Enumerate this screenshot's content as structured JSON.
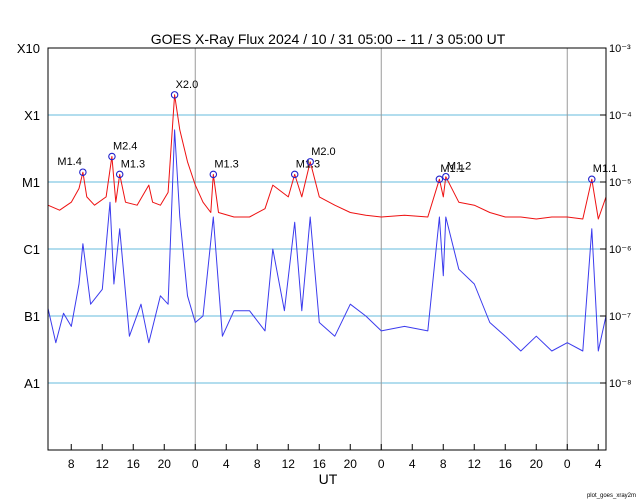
{
  "title": "GOES X-Ray Flux   2024 / 10 / 31   05:00 -- 11 /  3   05:00   UT",
  "credit": "plot_goes_xray2m",
  "colors": {
    "long_channel": "#ee1111",
    "short_channel": "#3b3bee",
    "class_grid": "#66bbdd",
    "day_boundary": "#9a9a9a",
    "flare_marker": "#2222cc"
  },
  "chart_data": {
    "type": "line",
    "title": "GOES X-Ray Flux   2024 / 10 / 31   05:00 -- 11 /  3   05:00   UT",
    "xlabel": "UT",
    "x_start": "2024-10-31 05:00",
    "x_end": "2024-11-03 05:00",
    "y_scale": "log",
    "ylim": [
      1e-09,
      0.001
    ],
    "grid": true,
    "x_ticks": [
      {
        "t": "2024-10-31 08:00",
        "label": "8"
      },
      {
        "t": "2024-10-31 12:00",
        "label": "12"
      },
      {
        "t": "2024-10-31 16:00",
        "label": "16"
      },
      {
        "t": "2024-10-31 20:00",
        "label": "20"
      },
      {
        "t": "2024-11-01 00:00",
        "label": "0"
      },
      {
        "t": "2024-11-01 04:00",
        "label": "4"
      },
      {
        "t": "2024-11-01 08:00",
        "label": "8"
      },
      {
        "t": "2024-11-01 12:00",
        "label": "12"
      },
      {
        "t": "2024-11-01 16:00",
        "label": "16"
      },
      {
        "t": "2024-11-01 20:00",
        "label": "20"
      },
      {
        "t": "2024-11-02 00:00",
        "label": "0"
      },
      {
        "t": "2024-11-02 04:00",
        "label": "4"
      },
      {
        "t": "2024-11-02 08:00",
        "label": "8"
      },
      {
        "t": "2024-11-02 12:00",
        "label": "12"
      },
      {
        "t": "2024-11-02 16:00",
        "label": "16"
      },
      {
        "t": "2024-11-02 20:00",
        "label": "20"
      },
      {
        "t": "2024-11-03 00:00",
        "label": "0"
      },
      {
        "t": "2024-11-03 04:00",
        "label": "4"
      }
    ],
    "day_boundaries": [
      "2024-11-01 00:00",
      "2024-11-02 00:00",
      "2024-11-03 00:00"
    ],
    "class_levels": [
      {
        "label": "X10",
        "flux": 0.001
      },
      {
        "label": "X1",
        "flux": 0.0001
      },
      {
        "label": "M1",
        "flux": 1e-05
      },
      {
        "label": "C1",
        "flux": 1e-06
      },
      {
        "label": "B1",
        "flux": 1e-07
      },
      {
        "label": "A1",
        "flux": 1e-08
      }
    ],
    "flux_ticks": [
      {
        "flux": 0.001,
        "label": "10⁻³"
      },
      {
        "flux": 0.0001,
        "label": "10⁻⁴"
      },
      {
        "flux": 1e-05,
        "label": "10⁻⁵"
      },
      {
        "flux": 1e-06,
        "label": "10⁻⁶"
      },
      {
        "flux": 1e-07,
        "label": "10⁻⁷"
      },
      {
        "flux": 1e-08,
        "label": "10⁻⁸"
      }
    ],
    "flares": [
      {
        "t": "2024-10-31 09:30",
        "flux": 1.4e-05,
        "label": "M1.4",
        "label_pos": "left"
      },
      {
        "t": "2024-10-31 13:15",
        "flux": 2.4e-05,
        "label": "M2.4",
        "label_pos": "right"
      },
      {
        "t": "2024-10-31 14:15",
        "flux": 1.3e-05,
        "label": "M1.3",
        "label_pos": "right"
      },
      {
        "t": "2024-10-31 21:20",
        "flux": 0.0002,
        "label": "X2.0",
        "label_pos": "right"
      },
      {
        "t": "2024-11-01 02:20",
        "flux": 1.3e-05,
        "label": "M1.3",
        "label_pos": "right"
      },
      {
        "t": "2024-11-01 12:50",
        "flux": 1.3e-05,
        "label": "M1.3",
        "label_pos": "right"
      },
      {
        "t": "2024-11-01 14:50",
        "flux": 2e-05,
        "label": "M2.0",
        "label_pos": "right"
      },
      {
        "t": "2024-11-02 07:30",
        "flux": 1.1e-05,
        "label": "M1.1",
        "label_pos": "right"
      },
      {
        "t": "2024-11-02 08:20",
        "flux": 1.2e-05,
        "label": "M1.2",
        "label_pos": "right"
      },
      {
        "t": "2024-11-03 03:10",
        "flux": 1.1e-05,
        "label": "M1.1",
        "label_pos": "right"
      }
    ],
    "series": [
      {
        "channel": "long",
        "x": [
          "2024-10-31 05:00",
          "2024-10-31 06:30",
          "2024-10-31 08:00",
          "2024-10-31 09:00",
          "2024-10-31 09:30",
          "2024-10-31 10:00",
          "2024-10-31 11:00",
          "2024-10-31 12:30",
          "2024-10-31 13:15",
          "2024-10-31 13:45",
          "2024-10-31 14:15",
          "2024-10-31 15:00",
          "2024-10-31 16:30",
          "2024-10-31 18:00",
          "2024-10-31 18:30",
          "2024-10-31 19:30",
          "2024-10-31 20:30",
          "2024-10-31 21:20",
          "2024-10-31 22:00",
          "2024-10-31 23:00",
          "2024-11-01 00:00",
          "2024-11-01 01:00",
          "2024-11-01 02:00",
          "2024-11-01 02:20",
          "2024-11-01 03:00",
          "2024-11-01 05:00",
          "2024-11-01 07:00",
          "2024-11-01 09:00",
          "2024-11-01 10:00",
          "2024-11-01 12:00",
          "2024-11-01 12:50",
          "2024-11-01 13:45",
          "2024-11-01 14:50",
          "2024-11-01 16:00",
          "2024-11-01 18:00",
          "2024-11-01 20:00",
          "2024-11-01 22:00",
          "2024-11-02 00:00",
          "2024-11-02 03:00",
          "2024-11-02 06:00",
          "2024-11-02 07:30",
          "2024-11-02 08:00",
          "2024-11-02 08:20",
          "2024-11-02 10:00",
          "2024-11-02 12:00",
          "2024-11-02 14:00",
          "2024-11-02 16:00",
          "2024-11-02 18:00",
          "2024-11-02 20:00",
          "2024-11-02 22:00",
          "2024-11-03 00:00",
          "2024-11-03 02:00",
          "2024-11-03 03:10",
          "2024-11-03 04:00",
          "2024-11-03 05:00"
        ],
        "y": [
          4.5e-06,
          3.8e-06,
          5e-06,
          8e-06,
          1.4e-05,
          6e-06,
          4.5e-06,
          6e-06,
          2.4e-05,
          5e-06,
          1.3e-05,
          5e-06,
          4.5e-06,
          9e-06,
          5e-06,
          4.5e-06,
          7e-06,
          0.0002,
          6e-05,
          2e-05,
          9e-06,
          5e-06,
          3.5e-06,
          1.3e-05,
          3.5e-06,
          3e-06,
          3e-06,
          4e-06,
          9e-06,
          6e-06,
          1.3e-05,
          6e-06,
          2e-05,
          6e-06,
          4.5e-06,
          3.5e-06,
          3.2e-06,
          3e-06,
          3.2e-06,
          3e-06,
          1.1e-05,
          6e-06,
          1.2e-05,
          5e-06,
          4.5e-06,
          3.5e-06,
          3e-06,
          3e-06,
          2.8e-06,
          3e-06,
          3e-06,
          2.8e-06,
          1.1e-05,
          2.8e-06,
          6e-06
        ]
      },
      {
        "channel": "short",
        "x": [
          "2024-10-31 05:00",
          "2024-10-31 06:00",
          "2024-10-31 07:00",
          "2024-10-31 08:00",
          "2024-10-31 09:00",
          "2024-10-31 09:30",
          "2024-10-31 10:30",
          "2024-10-31 12:00",
          "2024-10-31 13:00",
          "2024-10-31 13:30",
          "2024-10-31 14:15",
          "2024-10-31 15:30",
          "2024-10-31 17:00",
          "2024-10-31 18:00",
          "2024-10-31 19:30",
          "2024-10-31 20:30",
          "2024-10-31 21:20",
          "2024-10-31 22:00",
          "2024-10-31 23:00",
          "2024-11-01 00:00",
          "2024-11-01 01:00",
          "2024-11-01 02:20",
          "2024-11-01 03:30",
          "2024-11-01 05:00",
          "2024-11-01 07:00",
          "2024-11-01 09:00",
          "2024-11-01 10:00",
          "2024-11-01 11:30",
          "2024-11-01 12:50",
          "2024-11-01 13:45",
          "2024-11-01 14:50",
          "2024-11-01 16:00",
          "2024-11-01 18:00",
          "2024-11-01 20:00",
          "2024-11-01 22:00",
          "2024-11-02 00:00",
          "2024-11-02 03:00",
          "2024-11-02 06:00",
          "2024-11-02 07:30",
          "2024-11-02 08:00",
          "2024-11-02 08:20",
          "2024-11-02 10:00",
          "2024-11-02 12:00",
          "2024-11-02 14:00",
          "2024-11-02 16:00",
          "2024-11-02 18:00",
          "2024-11-02 20:00",
          "2024-11-02 22:00",
          "2024-11-03 00:00",
          "2024-11-03 02:00",
          "2024-11-03 03:10",
          "2024-11-03 04:00",
          "2024-11-03 05:00"
        ],
        "y": [
          1.3e-07,
          4e-08,
          1.1e-07,
          7e-08,
          3e-07,
          1.2e-06,
          1.5e-07,
          2.5e-07,
          5e-06,
          3e-07,
          2e-06,
          5e-08,
          1.5e-07,
          4e-08,
          2e-07,
          1.5e-07,
          6e-05,
          3e-06,
          2e-07,
          8e-08,
          1e-07,
          3e-06,
          5e-08,
          1.2e-07,
          1.2e-07,
          6e-08,
          1e-06,
          1.2e-07,
          2.5e-06,
          1.2e-07,
          3e-06,
          8e-08,
          5e-08,
          1.5e-07,
          1e-07,
          6e-08,
          7e-08,
          6e-08,
          3e-06,
          4e-07,
          3e-06,
          5e-07,
          3e-07,
          8e-08,
          5e-08,
          3e-08,
          5e-08,
          3e-08,
          4e-08,
          3e-08,
          2e-06,
          3e-08,
          1e-07
        ]
      }
    ]
  }
}
